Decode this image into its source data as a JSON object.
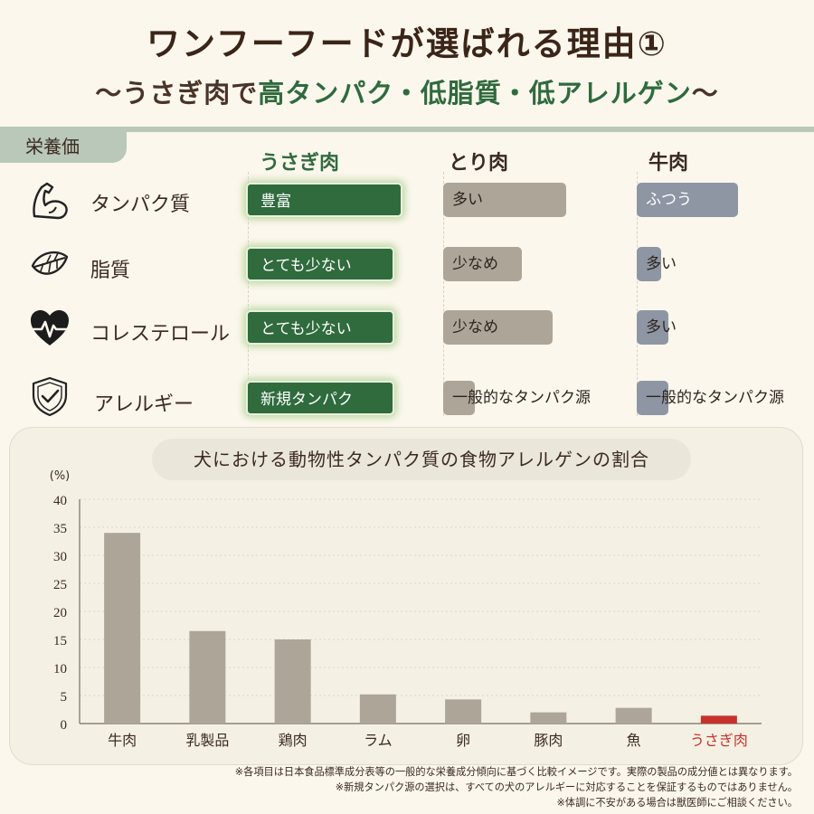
{
  "header": {
    "title": "ワンフーフードが選ばれる理由①",
    "subtitle_prefix": "〜うさぎ肉で",
    "subtitle_highlight": "高タンパク・低脂質・低アレルゲン",
    "subtitle_suffix": "〜"
  },
  "section_label": "栄養価",
  "columns": {
    "rabbit": "うさぎ肉",
    "chicken": "とり肉",
    "beef": "牛肉"
  },
  "rows": [
    {
      "icon": "muscle-arm-icon",
      "label": "タンパク質",
      "rabbit": "豊富",
      "chicken": "多い",
      "beef": "ふつう",
      "rabbit_level": 0.92,
      "chicken_level": 0.7,
      "beef_level": 0.57
    },
    {
      "icon": "leaf-icon",
      "label": "脂質",
      "rabbit": "とても少ない",
      "chicken": "少なめ",
      "beef": "多い",
      "rabbit_level": 0.87,
      "chicken_level": 0.45,
      "beef_level": 0.14
    },
    {
      "icon": "heart-pulse-icon",
      "label": "コレステロール",
      "rabbit": "とても少ない",
      "chicken": "少なめ",
      "beef": "多い",
      "rabbit_level": 0.87,
      "chicken_level": 0.62,
      "beef_level": 0.19
    },
    {
      "icon": "shield-check-icon",
      "label": "アレルギー",
      "rabbit": "新規タンパク",
      "chicken": "一般的なタンパク源",
      "beef": "一般的なタンパク源",
      "rabbit_level": 0.87,
      "chicken_level": 0.18,
      "beef_level": 0.19
    }
  ],
  "colors": {
    "green": "#2f6b3d",
    "tan": "#aca598",
    "gray": "#8e96a3",
    "bar": "#aca598",
    "highlight_bar": "#c8312b"
  },
  "chart_data": {
    "type": "bar",
    "title": "犬における動物性タンパク質の食物アレルゲンの割合",
    "ylabel": "(%)",
    "ylim": [
      0,
      40
    ],
    "yticks": [
      0,
      5,
      10,
      15,
      20,
      25,
      30,
      35,
      40
    ],
    "grid": true,
    "categories": [
      "牛肉",
      "乳製品",
      "鶏肉",
      "ラム",
      "卵",
      "豚肉",
      "魚",
      "うさぎ肉"
    ],
    "values": [
      34,
      16.5,
      15,
      5.2,
      4.3,
      2,
      2.8,
      1.4
    ],
    "highlight": "うさぎ肉"
  },
  "notes": [
    "※各項目は日本食品標準成分表等の一般的な栄養成分傾向に基づく比較イメージです。実際の製品の成分値とは異なります。",
    "※新規タンパク源の選択は、すべての犬のアレルギーに対応することを保証するものではありません。",
    "※体調に不安がある場合は獣医師にご相談ください。"
  ]
}
